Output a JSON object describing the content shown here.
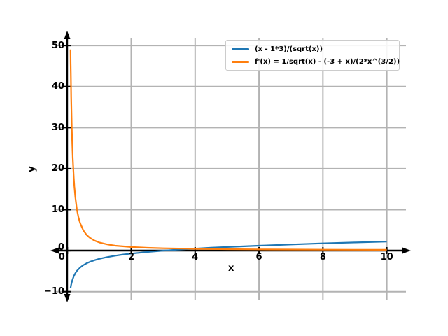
{
  "figure": {
    "background": "#ffffff"
  },
  "legend": {
    "entries": [
      {
        "label": "(x - 1*3)/(sqrt(x))",
        "color": "#1f77b4"
      },
      {
        "label": "f'(x) = 1/sqrt(x) - (-3 + x)/(2*x^(3/2))",
        "color": "#ff7f0e"
      }
    ]
  },
  "chart_data": {
    "type": "line",
    "title": "",
    "xlabel": "x",
    "ylabel": "y",
    "xlim": [
      -0.4,
      10.6
    ],
    "ylim": [
      -12.1,
      51.9
    ],
    "grid": true,
    "grid_color": "#b3b3b3",
    "axis_color": "#000000",
    "legend_position": "upper right",
    "xticks": {
      "values": [
        0,
        2,
        4,
        6,
        8,
        10
      ],
      "labels": [
        "0",
        "2",
        "4",
        "6",
        "8",
        "10"
      ]
    },
    "yticks": {
      "values": [
        -10,
        0,
        10,
        20,
        30,
        40,
        50
      ],
      "labels": [
        "−10",
        "0",
        "10",
        "20",
        "30",
        "40",
        "50"
      ]
    },
    "series": [
      {
        "name": "(x - 1*3)/(sqrt(x))",
        "color": "#1f77b4",
        "points": [
          [
            0.1,
            -9.17
          ],
          [
            0.12,
            -8.31
          ],
          [
            0.15,
            -7.36
          ],
          [
            0.2,
            -6.26
          ],
          [
            0.25,
            -5.5
          ],
          [
            0.3,
            -4.93
          ],
          [
            0.4,
            -4.11
          ],
          [
            0.5,
            -3.54
          ],
          [
            0.6,
            -3.1
          ],
          [
            0.7,
            -2.75
          ],
          [
            0.85,
            -2.33
          ],
          [
            1.0,
            -2.0
          ],
          [
            1.25,
            -1.57
          ],
          [
            1.5,
            -1.22
          ],
          [
            1.75,
            -0.94
          ],
          [
            2.0,
            -0.71
          ],
          [
            2.5,
            -0.32
          ],
          [
            3.0,
            0.0
          ],
          [
            3.5,
            0.27
          ],
          [
            4.0,
            0.5
          ],
          [
            4.5,
            0.71
          ],
          [
            5.0,
            0.89
          ],
          [
            6.0,
            1.22
          ],
          [
            7.0,
            1.51
          ],
          [
            8.0,
            1.77
          ],
          [
            9.0,
            2.0
          ],
          [
            10.0,
            2.21
          ]
        ]
      },
      {
        "name": "f'(x) = 1/sqrt(x) - (-3 + x)/(2*x^(3/2))",
        "color": "#ff7f0e",
        "points": [
          [
            0.1,
            49.03
          ],
          [
            0.105,
            45.6
          ],
          [
            0.11,
            42.63
          ],
          [
            0.12,
            37.53
          ],
          [
            0.13,
            33.39
          ],
          [
            0.14,
            30.0
          ],
          [
            0.15,
            27.11
          ],
          [
            0.17,
            22.6
          ],
          [
            0.2,
            17.89
          ],
          [
            0.22,
            15.6
          ],
          [
            0.25,
            13.0
          ],
          [
            0.3,
            10.04
          ],
          [
            0.35,
            8.09
          ],
          [
            0.4,
            6.72
          ],
          [
            0.5,
            4.95
          ],
          [
            0.6,
            3.87
          ],
          [
            0.7,
            3.16
          ],
          [
            0.85,
            2.46
          ],
          [
            1.0,
            2.0
          ],
          [
            1.25,
            1.52
          ],
          [
            1.5,
            1.22
          ],
          [
            2.0,
            0.88
          ],
          [
            2.5,
            0.7
          ],
          [
            3.0,
            0.58
          ],
          [
            4.0,
            0.44
          ],
          [
            5.0,
            0.36
          ],
          [
            6.0,
            0.31
          ],
          [
            7.0,
            0.27
          ],
          [
            8.0,
            0.24
          ],
          [
            9.0,
            0.22
          ],
          [
            10.0,
            0.21
          ]
        ]
      }
    ]
  }
}
